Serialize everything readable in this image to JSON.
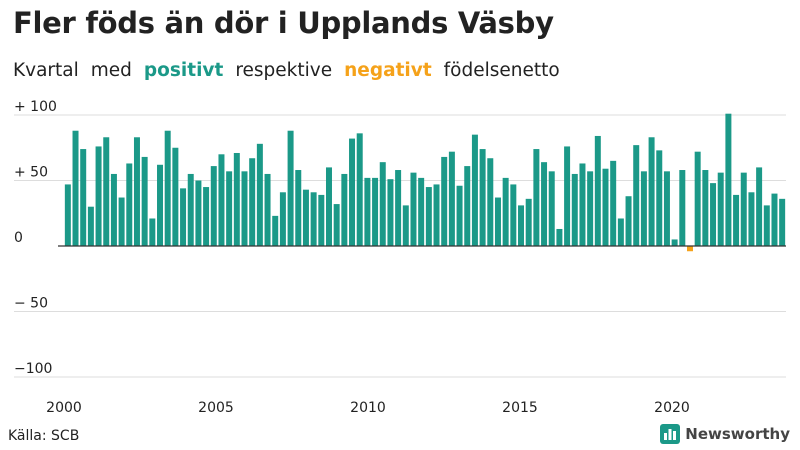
{
  "title": "Fler föds än dör i Upplands Väsby",
  "subtitle": {
    "part1": "Kvartal",
    "part2": "med",
    "positive_word": "positivt",
    "part3": "respektive",
    "negative_word": "negativt",
    "part4": "födelsenetto"
  },
  "colors": {
    "positive": "#1b9988",
    "negative": "#f5a21a",
    "grid": "#dddddd",
    "zero_line": "#333333",
    "text": "#222222"
  },
  "source": "Källa: SCB",
  "brand": {
    "name": "Newsworthy",
    "icon": "bar-chart-logo-icon"
  },
  "chart_data": {
    "type": "bar",
    "title": "Fler föds än dör i Upplands Väsby",
    "xlabel": "",
    "ylabel": "",
    "ylim": [
      -100,
      100
    ],
    "xlim": [
      2000,
      2023.75
    ],
    "y_ticks": [
      100,
      50,
      0,
      -50,
      -100
    ],
    "y_tick_labels": [
      "+ 100",
      "+  50",
      "0",
      "− 50",
      "−100"
    ],
    "x_ticks": [
      2000,
      2005,
      2010,
      2015,
      2020
    ],
    "x_tick_labels": [
      "2000",
      "2005",
      "2010",
      "2015",
      "2020"
    ],
    "grid": true,
    "start": "2000 Q1",
    "period": "quarter",
    "values": [
      47,
      88,
      74,
      30,
      76,
      83,
      55,
      37,
      63,
      83,
      68,
      21,
      62,
      88,
      75,
      44,
      55,
      50,
      45,
      61,
      70,
      57,
      71,
      57,
      67,
      78,
      55,
      23,
      41,
      88,
      58,
      43,
      41,
      39,
      60,
      32,
      55,
      82,
      86,
      52,
      52,
      64,
      51,
      58,
      31,
      56,
      52,
      45,
      47,
      68,
      72,
      46,
      61,
      85,
      74,
      67,
      37,
      52,
      47,
      31,
      36,
      74,
      64,
      57,
      13,
      76,
      55,
      63,
      57,
      84,
      59,
      65,
      21,
      38,
      77,
      57,
      83,
      73,
      57,
      5,
      58,
      -4,
      72,
      58,
      48,
      56,
      101,
      39,
      56,
      41,
      60,
      31,
      40,
      36
    ]
  }
}
